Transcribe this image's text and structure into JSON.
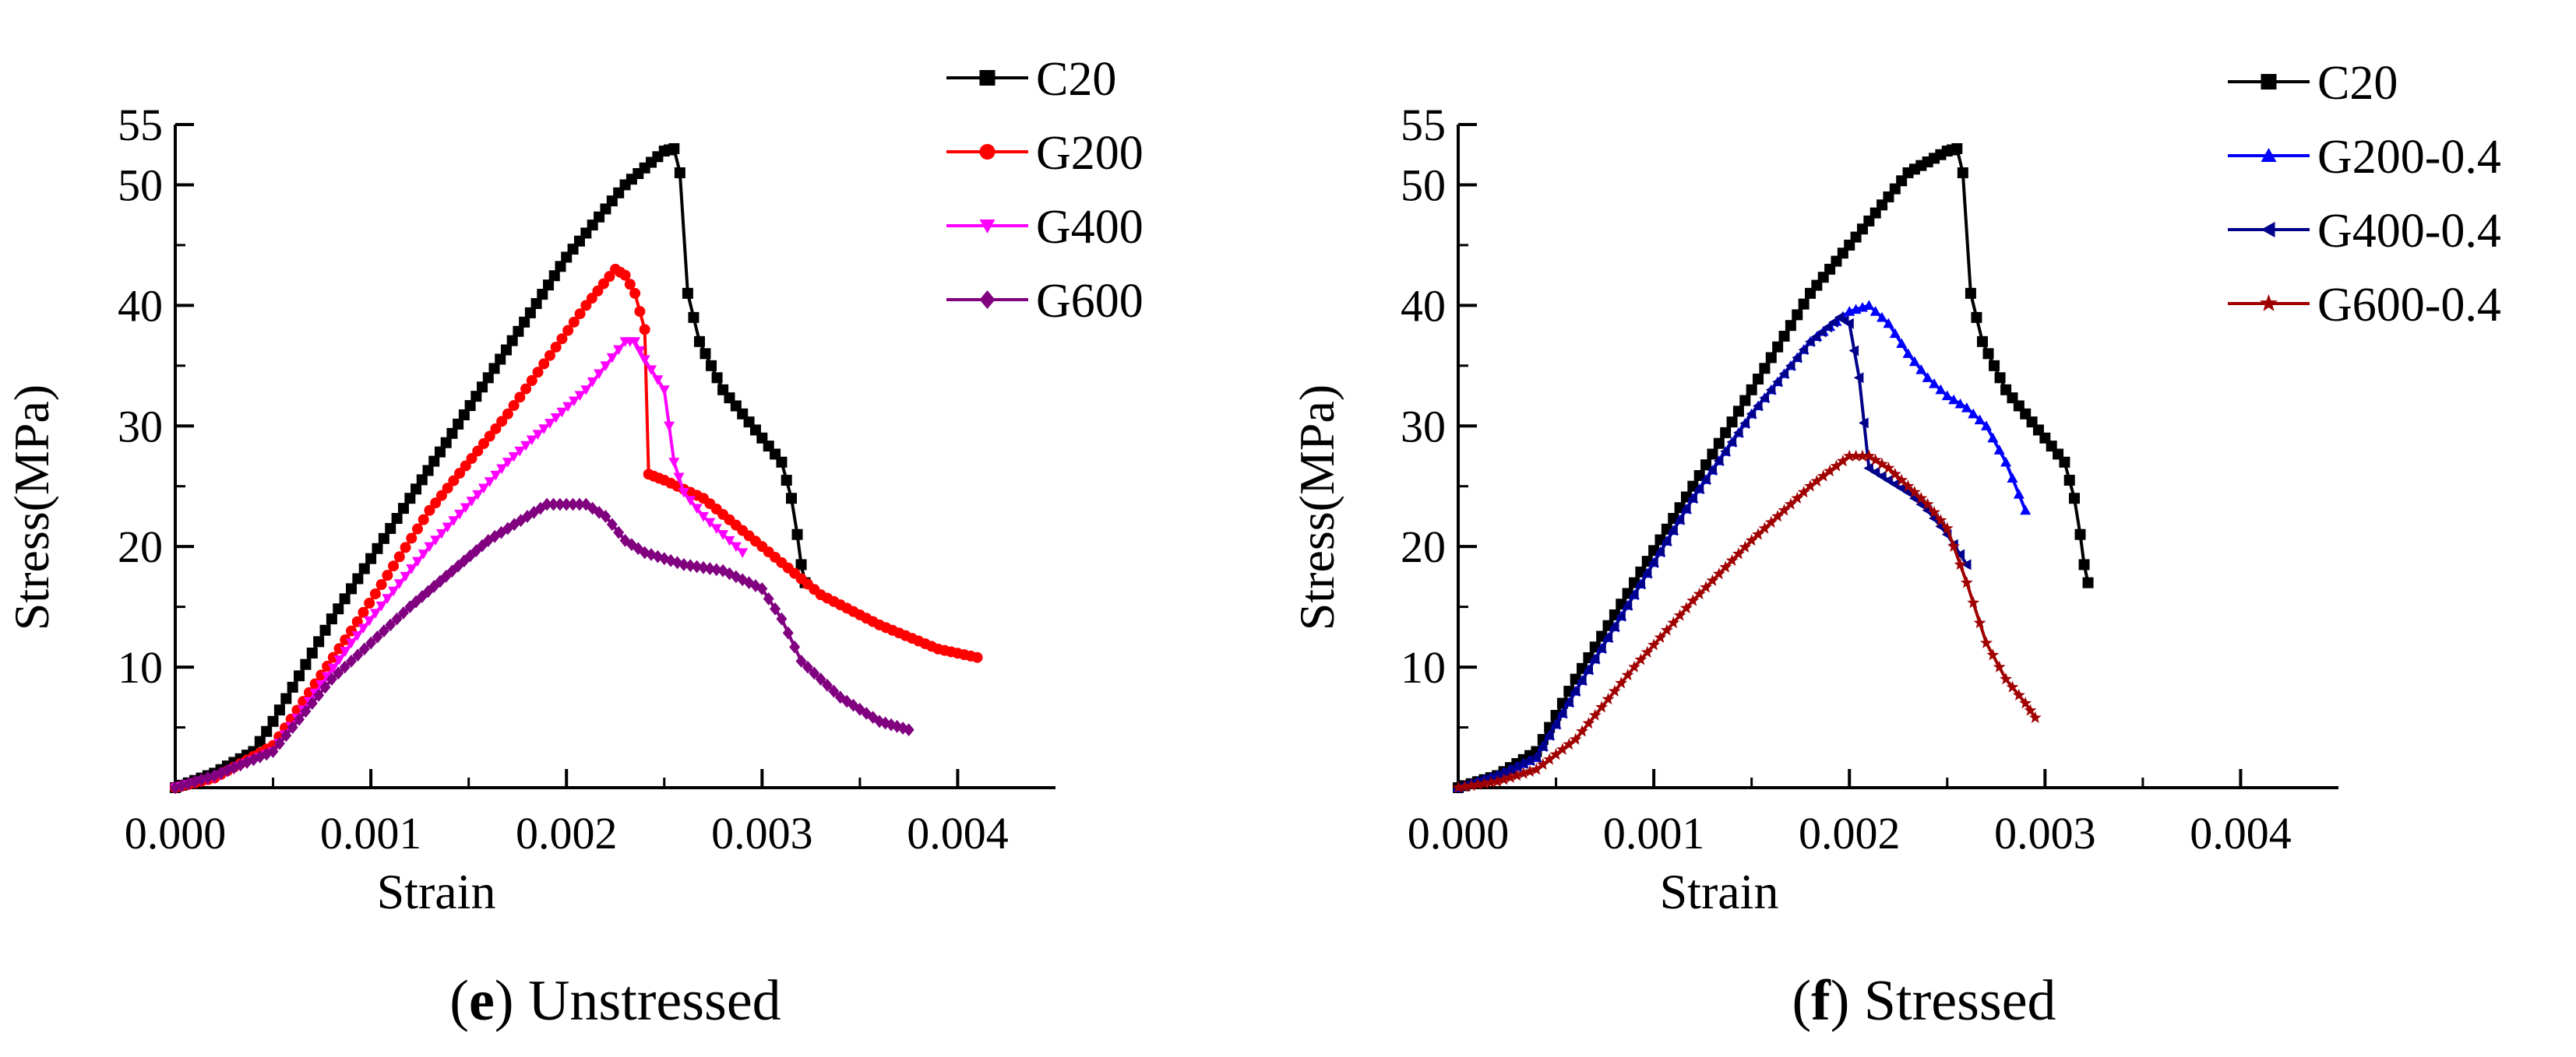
{
  "chart_data": [
    {
      "type": "line",
      "caption_letter": "e",
      "caption_text": "Unstressed",
      "xlabel": "Strain",
      "ylabel": "Stress(MPa)",
      "xlim": [
        0,
        0.0045
      ],
      "ylim": [
        0,
        55
      ],
      "xticks": [
        0.0,
        0.001,
        0.002,
        0.003,
        0.004
      ],
      "xtick_labels": [
        "0.000",
        "0.001",
        "0.002",
        "0.003",
        "0.004"
      ],
      "yticks": [
        10,
        20,
        30,
        40,
        50,
        55
      ],
      "ytick_labels": [
        "10",
        "20",
        "30",
        "40",
        "50",
        "55"
      ],
      "legend": "top-right",
      "series": [
        {
          "name": "C20",
          "color": "#000000",
          "marker": "square",
          "x": [
            0,
            0.0002,
            0.0004,
            0.0005,
            0.0008,
            0.0012,
            0.0016,
            0.002,
            0.0023,
            0.0025,
            0.00255,
            0.00258,
            0.00262,
            0.00268,
            0.0028,
            0.0029,
            0.003,
            0.0031,
            0.00315,
            0.00318,
            0.0032,
            0.00322
          ],
          "y": [
            0,
            1.2,
            3.0,
            5.5,
            14,
            24,
            34,
            44,
            50,
            52.8,
            53,
            51,
            41,
            37,
            33,
            31,
            29,
            27,
            24,
            21,
            18.5,
            17
          ]
        },
        {
          "name": "G200",
          "color": "#ff0000",
          "marker": "circle",
          "x": [
            0,
            0.0002,
            0.0005,
            0.0009,
            0.0013,
            0.0017,
            0.0021,
            0.00225,
            0.0023,
            0.00235,
            0.0024,
            0.00242,
            0.0025,
            0.0027,
            0.003,
            0.0033,
            0.0036,
            0.0039,
            0.0041
          ],
          "y": [
            0,
            0.8,
            3.5,
            13,
            23,
            31,
            40,
            43,
            42.5,
            41,
            38,
            26,
            25.5,
            24,
            20,
            16,
            13.5,
            11.5,
            10.8
          ]
        },
        {
          "name": "G400",
          "color": "#ff00ff",
          "marker": "triangle-down",
          "x": [
            0,
            0.0002,
            0.0005,
            0.0009,
            0.0013,
            0.0017,
            0.0021,
            0.0023,
            0.00235,
            0.0024,
            0.0025,
            0.00255,
            0.0026,
            0.0027,
            0.0028,
            0.0029
          ],
          "y": [
            0,
            0.8,
            3.0,
            12,
            20,
            27,
            33,
            37,
            37,
            35.5,
            33,
            27,
            24.5,
            22.5,
            21,
            19.5
          ]
        },
        {
          "name": "G600",
          "color": "#800080",
          "marker": "diamond",
          "x": [
            0,
            0.0002,
            0.0005,
            0.0008,
            0.0012,
            0.0016,
            0.0019,
            0.0021,
            0.0022,
            0.0023,
            0.0024,
            0.0026,
            0.0028,
            0.003,
            0.0031,
            0.0032,
            0.0034,
            0.0036,
            0.00375
          ],
          "y": [
            0,
            1.0,
            3.0,
            9,
            15,
            20.5,
            23.5,
            23.5,
            22.5,
            20.5,
            19.5,
            18.5,
            18,
            16.5,
            14,
            10.5,
            7.5,
            5.5,
            4.8
          ]
        }
      ]
    },
    {
      "type": "line",
      "caption_letter": "f",
      "caption_text": "Stressed",
      "xlabel": "Strain",
      "ylabel": "Stress(MPa)",
      "xlim": [
        0,
        0.0045
      ],
      "ylim": [
        0,
        55
      ],
      "xticks": [
        0.0,
        0.001,
        0.002,
        0.003,
        0.004
      ],
      "xtick_labels": [
        "0.000",
        "0.001",
        "0.002",
        "0.003",
        "0.004"
      ],
      "yticks": [
        10,
        20,
        30,
        40,
        50,
        55
      ],
      "ytick_labels": [
        "10",
        "20",
        "30",
        "40",
        "50",
        "55"
      ],
      "legend": "top-right",
      "series": [
        {
          "name": "C20",
          "color": "#000000",
          "marker": "square",
          "x": [
            0,
            0.0002,
            0.0004,
            0.0006,
            0.0009,
            0.0012,
            0.0015,
            0.0018,
            0.0021,
            0.0023,
            0.0025,
            0.00255,
            0.00258,
            0.00262,
            0.00268,
            0.0028,
            0.0029,
            0.003,
            0.0031,
            0.00315,
            0.00318,
            0.0032,
            0.00322
          ],
          "y": [
            0,
            1.0,
            3.0,
            9,
            17,
            25,
            33,
            41,
            47,
            51,
            52.8,
            53,
            51,
            41,
            37,
            33,
            31,
            29,
            27,
            24,
            21,
            18.5,
            17
          ]
        },
        {
          "name": "G200-0.4",
          "color": "#0000ff",
          "marker": "triangle-up",
          "x": [
            0,
            0.0002,
            0.0004,
            0.0006,
            0.0009,
            0.0012,
            0.0015,
            0.0018,
            0.002,
            0.0021,
            0.0022,
            0.0023,
            0.0024,
            0.0025,
            0.0026,
            0.0027,
            0.0028,
            0.0029
          ],
          "y": [
            0,
            1.0,
            2.5,
            8,
            16,
            24,
            31,
            37,
            39.5,
            40,
            38.5,
            36,
            34,
            32.5,
            31.5,
            30,
            27,
            23
          ]
        },
        {
          "name": "G400-0.4",
          "color": "#00008b",
          "marker": "triangle-left",
          "x": [
            0,
            0.0002,
            0.0004,
            0.0006,
            0.0009,
            0.0012,
            0.0015,
            0.0018,
            0.00195,
            0.002,
            0.00205,
            0.0021,
            0.0022,
            0.0023,
            0.0024,
            0.0025,
            0.0026
          ],
          "y": [
            0,
            1.0,
            2.5,
            8,
            16,
            24,
            31,
            37,
            39,
            38.5,
            34,
            26.5,
            25.5,
            24.5,
            23,
            21,
            18.5
          ]
        },
        {
          "name": "G600-0.4",
          "color": "#a00000",
          "marker": "star",
          "x": [
            0,
            0.0002,
            0.0004,
            0.0006,
            0.0009,
            0.0012,
            0.0015,
            0.0018,
            0.002,
            0.0021,
            0.0022,
            0.0023,
            0.0024,
            0.0025,
            0.0026,
            0.0027,
            0.0028,
            0.0029,
            0.00295
          ],
          "y": [
            0,
            0.5,
            1.5,
            4,
            10,
            15.5,
            20.5,
            25,
            27.5,
            27.5,
            26.5,
            25,
            23.5,
            21.5,
            17,
            12,
            9,
            7,
            5.8
          ]
        }
      ]
    }
  ]
}
